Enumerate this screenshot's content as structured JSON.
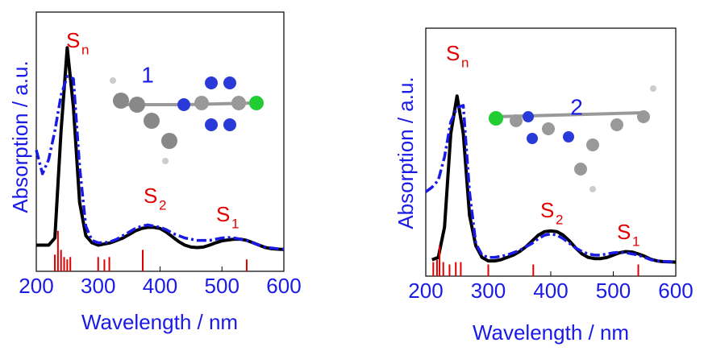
{
  "chart_data": [
    {
      "type": "line",
      "xlabel": "Wavelength / nm",
      "ylabel": "Absorption / a.u.",
      "compound_label": "1",
      "annotations": [
        {
          "text": "S",
          "sub": "n"
        },
        {
          "text": "S",
          "sub": "2"
        },
        {
          "text": "S",
          "sub": "1"
        }
      ],
      "xlim": [
        200,
        600
      ],
      "xticks": [
        200,
        300,
        400,
        500,
        600
      ],
      "ylim": [
        -0.09,
        1
      ],
      "x": [
        200,
        210,
        220,
        230,
        240,
        250,
        260,
        270,
        280,
        290,
        300,
        310,
        320,
        330,
        340,
        350,
        360,
        370,
        380,
        390,
        400,
        410,
        420,
        430,
        440,
        450,
        460,
        470,
        480,
        490,
        500,
        510,
        520,
        530,
        540,
        550,
        560,
        570,
        580,
        590,
        600
      ],
      "series": [
        {
          "color": "#000000",
          "style": "solid",
          "values": [
            0.02,
            0.02,
            0.02,
            0.05,
            0.5,
            0.85,
            0.6,
            0.2,
            0.06,
            0.03,
            0.02,
            0.025,
            0.03,
            0.04,
            0.05,
            0.065,
            0.08,
            0.09,
            0.095,
            0.095,
            0.09,
            0.075,
            0.055,
            0.035,
            0.02,
            0.012,
            0.01,
            0.012,
            0.02,
            0.03,
            0.038,
            0.042,
            0.045,
            0.045,
            0.04,
            0.03,
            0.02,
            0.01,
            0.005,
            0.003,
            0.002
          ]
        },
        {
          "color": "#1a1ae6",
          "style": "dashdot",
          "values": [
            0.42,
            0.32,
            0.38,
            0.5,
            0.65,
            0.73,
            0.72,
            0.35,
            0.1,
            0.04,
            0.03,
            0.03,
            0.035,
            0.045,
            0.06,
            0.075,
            0.09,
            0.1,
            0.105,
            0.1,
            0.095,
            0.085,
            0.07,
            0.06,
            0.05,
            0.045,
            0.04,
            0.04,
            0.04,
            0.045,
            0.05,
            0.052,
            0.05,
            0.045,
            0.04,
            0.03,
            0.02,
            0.012,
            0.008,
            0.005,
            0.003
          ]
        }
      ],
      "sticks": {
        "color": "#e00000",
        "x": [
          230,
          235,
          240,
          245,
          250,
          255,
          300,
          310,
          318,
          372,
          540
        ],
        "values": [
          -0.02,
          0.08,
          0.0,
          -0.03,
          -0.04,
          -0.03,
          -0.03,
          -0.04,
          -0.03,
          0.0,
          -0.04
        ]
      }
    },
    {
      "type": "line",
      "xlabel": "Wavelength / nm",
      "ylabel": "Absorption / a.u.",
      "compound_label": "2",
      "annotations": [
        {
          "text": "S",
          "sub": "n"
        },
        {
          "text": "S",
          "sub": "2"
        },
        {
          "text": "S",
          "sub": "1"
        }
      ],
      "xlim": [
        200,
        600
      ],
      "xticks": [
        200,
        300,
        400,
        500,
        600
      ],
      "ylim": [
        -0.06,
        1
      ],
      "x": [
        200,
        210,
        220,
        230,
        240,
        250,
        260,
        270,
        280,
        290,
        300,
        310,
        320,
        330,
        340,
        350,
        360,
        370,
        380,
        390,
        400,
        410,
        420,
        430,
        440,
        450,
        460,
        470,
        480,
        490,
        500,
        510,
        520,
        530,
        540,
        550,
        560,
        570,
        580,
        590,
        600
      ],
      "series": [
        {
          "color": "#000000",
          "style": "solid",
          "values": [
            null,
            0.01,
            0.02,
            0.15,
            0.55,
            0.71,
            0.55,
            0.2,
            0.07,
            0.02,
            0.005,
            0.005,
            0.01,
            0.02,
            0.03,
            0.045,
            0.065,
            0.09,
            0.115,
            0.13,
            0.133,
            0.13,
            0.115,
            0.09,
            0.06,
            0.035,
            0.02,
            0.015,
            0.015,
            0.02,
            0.03,
            0.04,
            0.045,
            0.043,
            0.035,
            0.025,
            0.012,
            0.005,
            0.002,
            0.001,
            0
          ]
        },
        {
          "color": "#1a1ae6",
          "style": "dashdot",
          "values": [
            0.3,
            0.32,
            0.35,
            0.45,
            0.6,
            0.66,
            0.67,
            0.3,
            0.08,
            0.03,
            0.02,
            0.02,
            0.025,
            0.03,
            0.04,
            0.05,
            0.065,
            0.08,
            0.1,
            0.115,
            0.12,
            0.115,
            0.1,
            0.08,
            0.06,
            0.045,
            0.035,
            0.03,
            0.03,
            0.035,
            0.04,
            0.042,
            0.04,
            0.035,
            0.03,
            0.02,
            0.01,
            0.005,
            0.003,
            0.002,
            0.001
          ]
        }
      ],
      "sticks": {
        "color": "#e00000",
        "x": [
          212,
          218,
          222,
          228,
          238,
          248,
          256,
          300,
          372,
          540
        ],
        "values": [
          0.0,
          0.01,
          0.07,
          0.0,
          -0.01,
          0.0,
          0.0,
          -0.01,
          -0.01,
          -0.01
        ]
      }
    }
  ]
}
